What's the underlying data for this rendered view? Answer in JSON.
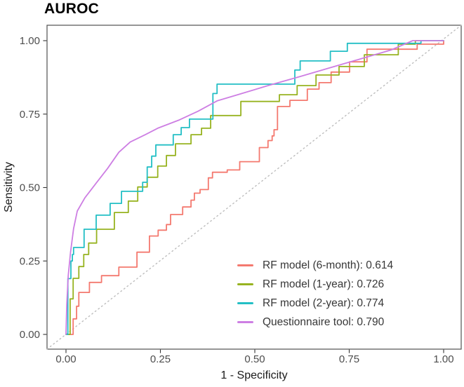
{
  "chart": {
    "title": "AUROC",
    "x_axis_label": "1 - Specificity",
    "y_axis_label": "Sensitivity"
  },
  "chart_data": {
    "type": "line",
    "title": "AUROC",
    "xlabel": "1 - Specificity",
    "ylabel": "Sensitivity",
    "xlim": [
      0,
      1
    ],
    "ylim": [
      0,
      1
    ],
    "grid": false,
    "legend_position": "inside bottom-right",
    "reference_line": "dotted diagonal y = x",
    "x_ticks": [
      {
        "v": 0.0,
        "label": "0.00"
      },
      {
        "v": 0.25,
        "label": "0.25"
      },
      {
        "v": 0.5,
        "label": "0.50"
      },
      {
        "v": 0.75,
        "label": "0.75"
      },
      {
        "v": 1.0,
        "label": "1.00"
      }
    ],
    "y_ticks": [
      {
        "v": 0.0,
        "label": "0.00"
      },
      {
        "v": 0.25,
        "label": "0.25"
      },
      {
        "v": 0.5,
        "label": "0.50"
      },
      {
        "v": 0.75,
        "label": "0.75"
      },
      {
        "v": 1.0,
        "label": "1.00"
      }
    ],
    "series": [
      {
        "id": "rf-6-month",
        "name": "RF model (6-month)",
        "auc": 0.614,
        "legend_label": "RF model (6-month): 0.614",
        "color": "#f4796f",
        "points": [
          [
            0,
            0
          ],
          [
            0.019,
            0
          ],
          [
            0.019,
            0.053
          ],
          [
            0.028,
            0.053
          ],
          [
            0.028,
            0.096
          ],
          [
            0.034,
            0.096
          ],
          [
            0.034,
            0.143
          ],
          [
            0.062,
            0.143
          ],
          [
            0.062,
            0.177
          ],
          [
            0.094,
            0.177
          ],
          [
            0.094,
            0.2
          ],
          [
            0.14,
            0.2
          ],
          [
            0.14,
            0.229
          ],
          [
            0.188,
            0.229
          ],
          [
            0.188,
            0.28
          ],
          [
            0.221,
            0.28
          ],
          [
            0.221,
            0.335
          ],
          [
            0.244,
            0.335
          ],
          [
            0.244,
            0.355
          ],
          [
            0.266,
            0.355
          ],
          [
            0.266,
            0.374
          ],
          [
            0.277,
            0.374
          ],
          [
            0.277,
            0.408
          ],
          [
            0.309,
            0.408
          ],
          [
            0.309,
            0.434
          ],
          [
            0.331,
            0.434
          ],
          [
            0.331,
            0.457
          ],
          [
            0.34,
            0.457
          ],
          [
            0.34,
            0.481
          ],
          [
            0.355,
            0.481
          ],
          [
            0.355,
            0.493
          ],
          [
            0.377,
            0.493
          ],
          [
            0.377,
            0.533
          ],
          [
            0.388,
            0.533
          ],
          [
            0.388,
            0.552
          ],
          [
            0.427,
            0.552
          ],
          [
            0.427,
            0.56
          ],
          [
            0.46,
            0.56
          ],
          [
            0.46,
            0.588
          ],
          [
            0.512,
            0.588
          ],
          [
            0.512,
            0.636
          ],
          [
            0.535,
            0.636
          ],
          [
            0.535,
            0.66
          ],
          [
            0.546,
            0.66
          ],
          [
            0.546,
            0.676
          ],
          [
            0.551,
            0.676
          ],
          [
            0.551,
            0.697
          ],
          [
            0.56,
            0.697
          ],
          [
            0.56,
            0.776
          ],
          [
            0.593,
            0.776
          ],
          [
            0.593,
            0.797
          ],
          [
            0.639,
            0.797
          ],
          [
            0.639,
            0.835
          ],
          [
            0.67,
            0.835
          ],
          [
            0.67,
            0.857
          ],
          [
            0.702,
            0.857
          ],
          [
            0.702,
            0.893
          ],
          [
            0.751,
            0.893
          ],
          [
            0.751,
            0.928
          ],
          [
            0.797,
            0.928
          ],
          [
            0.797,
            0.971
          ],
          [
            0.93,
            0.971
          ],
          [
            0.93,
            0.988
          ],
          [
            1,
            0.988
          ],
          [
            1,
            1
          ]
        ]
      },
      {
        "id": "rf-1-year",
        "name": "RF model (1-year)",
        "auc": 0.726,
        "legend_label": "RF model (1-year): 0.726",
        "color": "#97b320",
        "points": [
          [
            0,
            0
          ],
          [
            0.011,
            0
          ],
          [
            0.011,
            0.121
          ],
          [
            0.019,
            0.121
          ],
          [
            0.019,
            0.191
          ],
          [
            0.034,
            0.191
          ],
          [
            0.034,
            0.231
          ],
          [
            0.047,
            0.231
          ],
          [
            0.047,
            0.272
          ],
          [
            0.06,
            0.272
          ],
          [
            0.06,
            0.311
          ],
          [
            0.081,
            0.311
          ],
          [
            0.081,
            0.358
          ],
          [
            0.128,
            0.358
          ],
          [
            0.128,
            0.415
          ],
          [
            0.165,
            0.415
          ],
          [
            0.165,
            0.454
          ],
          [
            0.19,
            0.454
          ],
          [
            0.19,
            0.502
          ],
          [
            0.215,
            0.502
          ],
          [
            0.215,
            0.535
          ],
          [
            0.243,
            0.535
          ],
          [
            0.243,
            0.573
          ],
          [
            0.266,
            0.573
          ],
          [
            0.266,
            0.609
          ],
          [
            0.29,
            0.609
          ],
          [
            0.29,
            0.649
          ],
          [
            0.331,
            0.649
          ],
          [
            0.331,
            0.68
          ],
          [
            0.359,
            0.68
          ],
          [
            0.359,
            0.702
          ],
          [
            0.383,
            0.702
          ],
          [
            0.383,
            0.745
          ],
          [
            0.463,
            0.745
          ],
          [
            0.463,
            0.793
          ],
          [
            0.565,
            0.793
          ],
          [
            0.565,
            0.816
          ],
          [
            0.612,
            0.816
          ],
          [
            0.612,
            0.847
          ],
          [
            0.662,
            0.847
          ],
          [
            0.662,
            0.883
          ],
          [
            0.723,
            0.883
          ],
          [
            0.723,
            0.912
          ],
          [
            0.79,
            0.912
          ],
          [
            0.79,
            0.952
          ],
          [
            0.88,
            0.952
          ],
          [
            0.88,
            0.988
          ],
          [
            0.925,
            0.988
          ],
          [
            0.925,
            1
          ],
          [
            1,
            1
          ]
        ]
      },
      {
        "id": "rf-2-year",
        "name": "RF model (2-year)",
        "auc": 0.774,
        "legend_label": "RF model (2-year): 0.774",
        "color": "#23bfc5",
        "points": [
          [
            0,
            0
          ],
          [
            0.005,
            0
          ],
          [
            0.005,
            0.19
          ],
          [
            0.013,
            0.19
          ],
          [
            0.013,
            0.25
          ],
          [
            0.017,
            0.25
          ],
          [
            0.017,
            0.272
          ],
          [
            0.02,
            0.272
          ],
          [
            0.02,
            0.296
          ],
          [
            0.048,
            0.296
          ],
          [
            0.048,
            0.358
          ],
          [
            0.08,
            0.358
          ],
          [
            0.08,
            0.406
          ],
          [
            0.117,
            0.406
          ],
          [
            0.117,
            0.446
          ],
          [
            0.147,
            0.446
          ],
          [
            0.147,
            0.487
          ],
          [
            0.203,
            0.487
          ],
          [
            0.203,
            0.518
          ],
          [
            0.215,
            0.518
          ],
          [
            0.215,
            0.57
          ],
          [
            0.227,
            0.57
          ],
          [
            0.227,
            0.607
          ],
          [
            0.238,
            0.607
          ],
          [
            0.238,
            0.645
          ],
          [
            0.284,
            0.645
          ],
          [
            0.284,
            0.68
          ],
          [
            0.305,
            0.68
          ],
          [
            0.305,
            0.704
          ],
          [
            0.327,
            0.704
          ],
          [
            0.327,
            0.733
          ],
          [
            0.389,
            0.733
          ],
          [
            0.389,
            0.82
          ],
          [
            0.4,
            0.82
          ],
          [
            0.4,
            0.852
          ],
          [
            0.606,
            0.852
          ],
          [
            0.606,
            0.9
          ],
          [
            0.62,
            0.9
          ],
          [
            0.62,
            0.931
          ],
          [
            0.7,
            0.931
          ],
          [
            0.7,
            0.964
          ],
          [
            0.745,
            0.964
          ],
          [
            0.745,
            0.991
          ],
          [
            0.94,
            0.991
          ],
          [
            0.94,
            1
          ],
          [
            1,
            1
          ]
        ]
      },
      {
        "id": "questionnaire-tool",
        "name": "Questionnaire tool",
        "auc": 0.79,
        "legend_label": "Questionnaire tool: 0.790",
        "color": "#cd7ee3",
        "points": [
          [
            0,
            0
          ],
          [
            0.002,
            0.1
          ],
          [
            0.006,
            0.2
          ],
          [
            0.012,
            0.28
          ],
          [
            0.02,
            0.36
          ],
          [
            0.03,
            0.42
          ],
          [
            0.05,
            0.465
          ],
          [
            0.08,
            0.515
          ],
          [
            0.11,
            0.565
          ],
          [
            0.14,
            0.62
          ],
          [
            0.17,
            0.655
          ],
          [
            0.21,
            0.68
          ],
          [
            0.243,
            0.702
          ],
          [
            0.3,
            0.73
          ],
          [
            0.35,
            0.76
          ],
          [
            0.4,
            0.795
          ],
          [
            0.46,
            0.818
          ],
          [
            0.53,
            0.845
          ],
          [
            0.62,
            0.878
          ],
          [
            0.7,
            0.908
          ],
          [
            0.78,
            0.938
          ],
          [
            0.86,
            0.968
          ],
          [
            0.918,
            1
          ],
          [
            1,
            1
          ]
        ]
      }
    ]
  }
}
